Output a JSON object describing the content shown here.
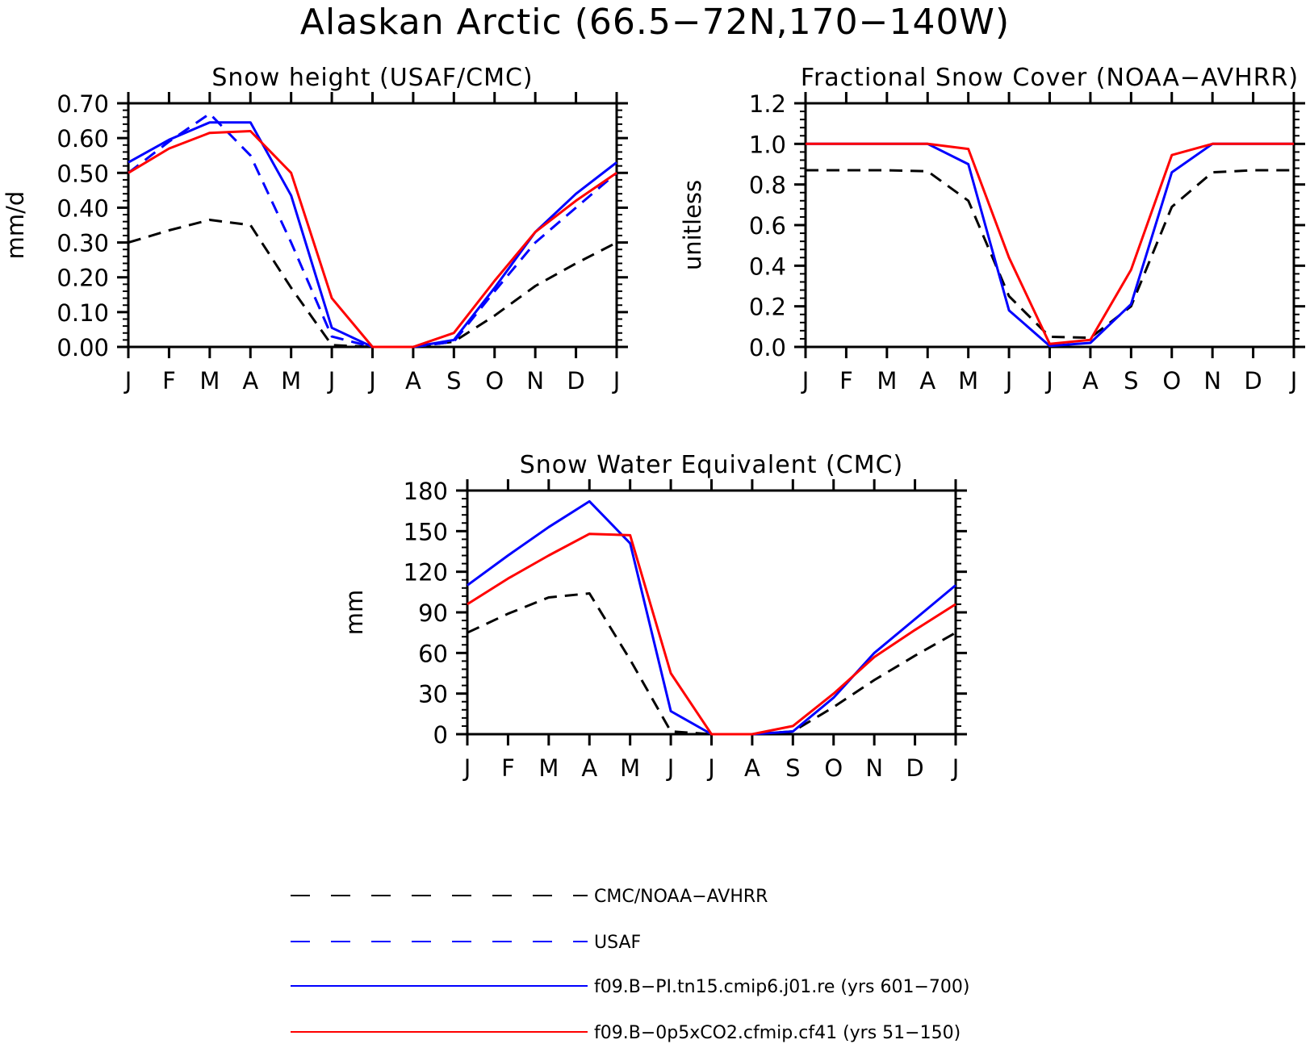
{
  "title": "Alaskan Arctic (66.5−72N,170−140W)",
  "colors": {
    "obs": "#000000",
    "usaf": "#0000ff",
    "model1": "#0000ff",
    "model2": "#ff0000"
  },
  "legend": [
    {
      "label": "CMC/NOAA−AVHRR",
      "color": "#000000",
      "dash": "dashed"
    },
    {
      "label": "USAF",
      "color": "#0000ff",
      "dash": "dashed"
    },
    {
      "label": "f09.B−PI.tn15.cmip6.j01.re (yrs 601−700)",
      "color": "#0000ff",
      "dash": "solid"
    },
    {
      "label": "f09.B−0p5xCO2.cfmip.cf41 (yrs 51−150)",
      "color": "#ff0000",
      "dash": "solid"
    }
  ],
  "chart_data": [
    {
      "type": "line",
      "title": "Snow height (USAF/CMC)",
      "ylabel": "mm/d",
      "categories": [
        "J",
        "F",
        "M",
        "A",
        "M",
        "J",
        "J",
        "A",
        "S",
        "O",
        "N",
        "D",
        "J"
      ],
      "ylim": [
        0,
        0.7
      ],
      "yticks": [
        "0.00",
        "0.10",
        "0.20",
        "0.30",
        "0.40",
        "0.50",
        "0.60",
        "0.70"
      ],
      "series": [
        {
          "name": "CMC/NOAA−AVHRR",
          "color": "#000000",
          "dash": "dashed",
          "values": [
            0.3,
            0.335,
            0.365,
            0.35,
            0.17,
            0.005,
            0.0,
            0.0,
            0.015,
            0.09,
            0.175,
            0.24,
            0.3
          ]
        },
        {
          "name": "USAF",
          "color": "#0000ff",
          "dash": "dashed",
          "values": [
            0.5,
            0.59,
            0.67,
            0.55,
            0.3,
            0.03,
            0.0,
            0.0,
            0.015,
            0.16,
            0.3,
            0.4,
            0.5
          ]
        },
        {
          "name": "f09.B−PI.tn15.cmip6.j01.re (yrs 601−700)",
          "color": "#0000ff",
          "dash": "solid",
          "values": [
            0.53,
            0.595,
            0.645,
            0.645,
            0.435,
            0.055,
            0.0,
            0.0,
            0.02,
            0.17,
            0.33,
            0.44,
            0.53
          ]
        },
        {
          "name": "f09.B−0p5xCO2.cfmip.cf41 (yrs 51−150)",
          "color": "#ff0000",
          "dash": "solid",
          "values": [
            0.5,
            0.57,
            0.615,
            0.62,
            0.5,
            0.14,
            0.0,
            0.0,
            0.04,
            0.19,
            0.33,
            0.42,
            0.5
          ]
        }
      ]
    },
    {
      "type": "line",
      "title": "Fractional Snow Cover (NOAA−AVHRR)",
      "ylabel": "unitless",
      "categories": [
        "J",
        "F",
        "M",
        "A",
        "M",
        "J",
        "J",
        "A",
        "S",
        "O",
        "N",
        "D",
        "J"
      ],
      "ylim": [
        0,
        1.2
      ],
      "yticks": [
        "0.0",
        "0.2",
        "0.4",
        "0.6",
        "0.8",
        "1.0",
        "1.2"
      ],
      "series": [
        {
          "name": "CMC/NOAA−AVHRR",
          "color": "#000000",
          "dash": "dashed",
          "values": [
            0.87,
            0.87,
            0.87,
            0.865,
            0.72,
            0.25,
            0.05,
            0.045,
            0.2,
            0.69,
            0.86,
            0.87,
            0.87
          ]
        },
        {
          "name": "f09.B−PI.tn15.cmip6.j01.re (yrs 601−700)",
          "color": "#0000ff",
          "dash": "solid",
          "values": [
            1.0,
            1.0,
            1.0,
            1.0,
            0.9,
            0.18,
            0.005,
            0.02,
            0.21,
            0.86,
            1.0,
            1.0,
            1.0
          ]
        },
        {
          "name": "f09.B−0p5xCO2.cfmip.cf41 (yrs 51−150)",
          "color": "#ff0000",
          "dash": "solid",
          "values": [
            1.0,
            1.0,
            1.0,
            1.0,
            0.975,
            0.44,
            0.015,
            0.035,
            0.38,
            0.945,
            1.0,
            1.0,
            1.0
          ]
        }
      ]
    },
    {
      "type": "line",
      "title": "Snow Water Equivalent (CMC)",
      "ylabel": "mm",
      "categories": [
        "J",
        "F",
        "M",
        "A",
        "M",
        "J",
        "J",
        "A",
        "S",
        "O",
        "N",
        "D",
        "J"
      ],
      "ylim": [
        0,
        180
      ],
      "yticks": [
        "0",
        "30",
        "60",
        "90",
        "120",
        "150",
        "180"
      ],
      "series": [
        {
          "name": "CMC/NOAA−AVHRR",
          "color": "#000000",
          "dash": "dashed",
          "values": [
            75,
            89,
            101,
            104,
            55,
            2,
            0,
            0,
            2,
            20,
            40,
            58,
            75
          ]
        },
        {
          "name": "f09.B−PI.tn15.cmip6.j01.re (yrs 601−700)",
          "color": "#0000ff",
          "dash": "solid",
          "values": [
            110,
            132,
            153,
            172,
            141,
            17,
            0,
            0,
            2,
            27,
            60,
            85,
            110
          ]
        },
        {
          "name": "f09.B−0p5xCO2.cfmip.cf41 (yrs 51−150)",
          "color": "#ff0000",
          "dash": "solid",
          "values": [
            96,
            115,
            132,
            148,
            147,
            45,
            0,
            0,
            6,
            30,
            57,
            77,
            96
          ]
        }
      ]
    }
  ]
}
